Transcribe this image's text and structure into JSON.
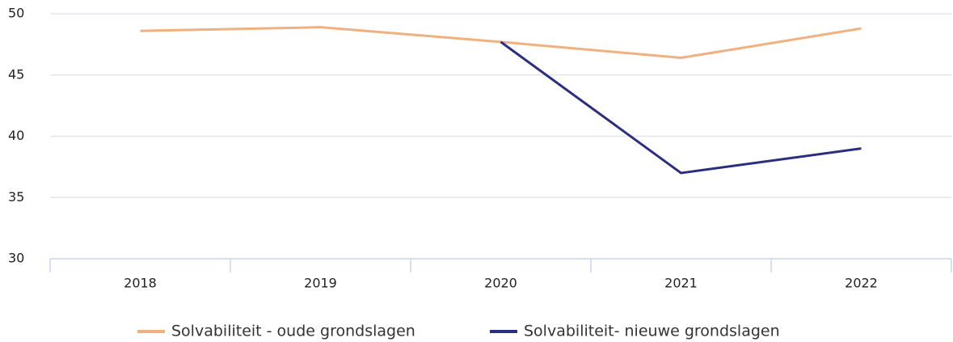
{
  "chart_data": {
    "type": "line",
    "categories": [
      "2018",
      "2019",
      "2020",
      "2021",
      "2022"
    ],
    "series": [
      {
        "name": "Solvabiliteit - oude grondslagen",
        "color": "#f0b080",
        "values": [
          48.6,
          48.9,
          47.7,
          46.4,
          48.8
        ]
      },
      {
        "name": "Solvabiliteit- nieuwe grondslagen",
        "color": "#2b2e7e",
        "values": [
          null,
          null,
          47.7,
          37.0,
          39.0
        ]
      }
    ],
    "ylim": [
      30,
      50
    ],
    "yticks": [
      30,
      35,
      40,
      45,
      50
    ],
    "grid": true,
    "legend": "bottom"
  }
}
